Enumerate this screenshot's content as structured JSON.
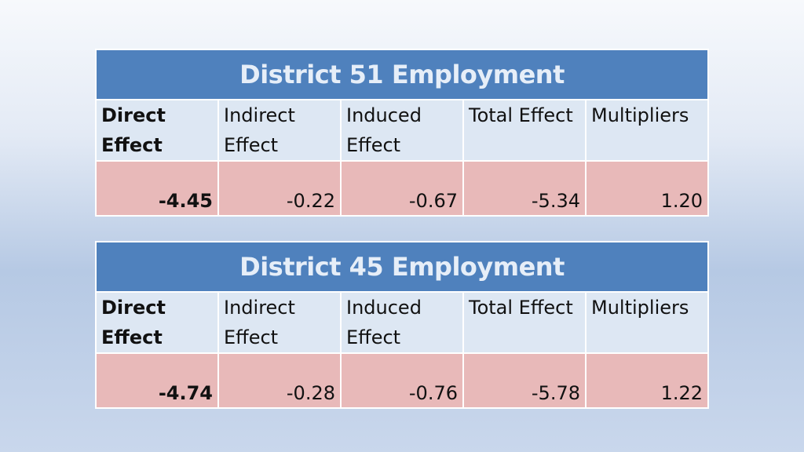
{
  "tables": [
    {
      "title": "District 51 Employment",
      "headers": [
        {
          "line1": "Direct",
          "line2": "Effect"
        },
        {
          "line1": "Indirect",
          "line2": "Effect"
        },
        {
          "line1": "Induced",
          "line2": "Effect"
        },
        {
          "line1": "Total Effect",
          "line2": ""
        },
        {
          "line1": "Multipliers",
          "line2": ""
        }
      ],
      "values": [
        "-4.45",
        "-0.22",
        "-0.67",
        "-5.34",
        "1.20"
      ]
    },
    {
      "title": "District 45 Employment",
      "headers": [
        {
          "line1": "Direct",
          "line2": "Effect"
        },
        {
          "line1": "Indirect",
          "line2": "Effect"
        },
        {
          "line1": "Induced",
          "line2": "Effect"
        },
        {
          "line1": "Total Effect",
          "line2": ""
        },
        {
          "line1": "Multipliers",
          "line2": ""
        }
      ],
      "values": [
        "-4.74",
        "-0.28",
        "-0.76",
        "-5.78",
        "1.22"
      ]
    }
  ],
  "colors": {
    "title_background": "#4f81bd",
    "header_background": "#dde7f3",
    "value_background": "#e8b9b9"
  }
}
